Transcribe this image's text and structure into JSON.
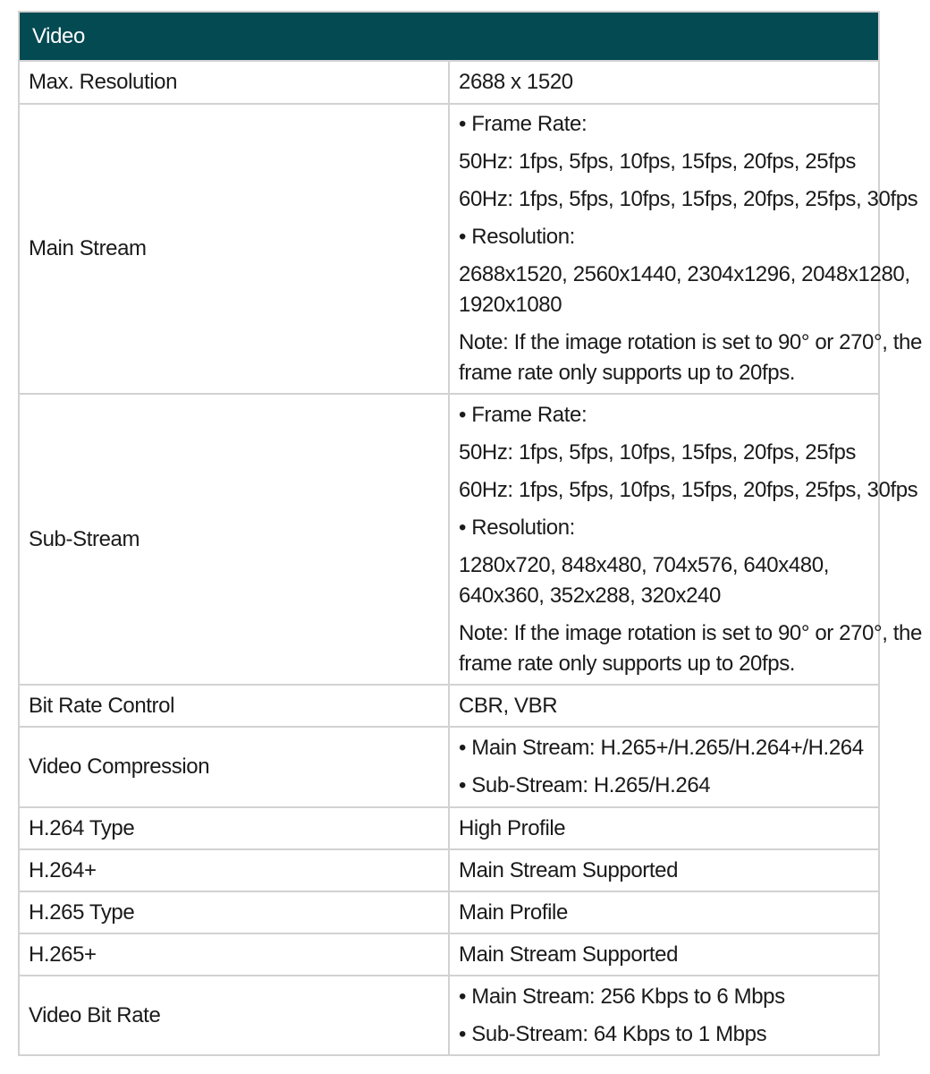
{
  "title": "Video",
  "rows": [
    {
      "label": "Max. Resolution",
      "paras": [
        [
          "2688 x 1520"
        ]
      ]
    },
    {
      "label": "Main Stream",
      "paras": [
        [
          "• Frame Rate:"
        ],
        [
          "50Hz: 1fps, 5fps, 10fps, 15fps, 20fps, 25fps"
        ],
        [
          "60Hz: 1fps, 5fps, 10fps, 15fps, 20fps, 25fps, 30fps"
        ],
        [
          "• Resolution:"
        ],
        [
          "2688x1520, 2560x1440, 2304x1296, 2048x1280,",
          "1920x1080"
        ],
        [
          "Note: If the image rotation is set to 90° or 270°, the",
          "frame rate only supports up to 20fps."
        ]
      ]
    },
    {
      "label": "Sub-Stream",
      "paras": [
        [
          "• Frame Rate:"
        ],
        [
          "50Hz: 1fps, 5fps, 10fps, 15fps, 20fps, 25fps"
        ],
        [
          "60Hz: 1fps, 5fps, 10fps, 15fps, 20fps, 25fps, 30fps"
        ],
        [
          "• Resolution:"
        ],
        [
          "1280x720, 848x480, 704x576, 640x480,",
          "640x360, 352x288, 320x240"
        ],
        [
          "Note: If the image rotation is set to 90° or 270°, the",
          "frame rate only supports up to 20fps."
        ]
      ]
    },
    {
      "label": "Bit Rate Control",
      "paras": [
        [
          "CBR, VBR"
        ]
      ]
    },
    {
      "label": "Video Compression",
      "paras": [
        [
          "• Main Stream: H.265+/H.265/H.264+/H.264"
        ],
        [
          "• Sub-Stream: H.265/H.264"
        ]
      ]
    },
    {
      "label": "H.264 Type",
      "paras": [
        [
          "High Profile"
        ]
      ]
    },
    {
      "label": "H.264+",
      "paras": [
        [
          "Main Stream Supported"
        ]
      ]
    },
    {
      "label": "H.265 Type",
      "paras": [
        [
          "Main Profile"
        ]
      ]
    },
    {
      "label": "H.265+",
      "paras": [
        [
          "Main Stream Supported"
        ]
      ]
    },
    {
      "label": "Video Bit Rate",
      "paras": [
        [
          "• Main Stream: 256 Kbps to 6 Mbps"
        ],
        [
          "• Sub-Stream: 64 Kbps to 1 Mbps"
        ]
      ]
    }
  ],
  "colors": {
    "header_bg": "#034a52",
    "border": "#d2d2d2"
  }
}
